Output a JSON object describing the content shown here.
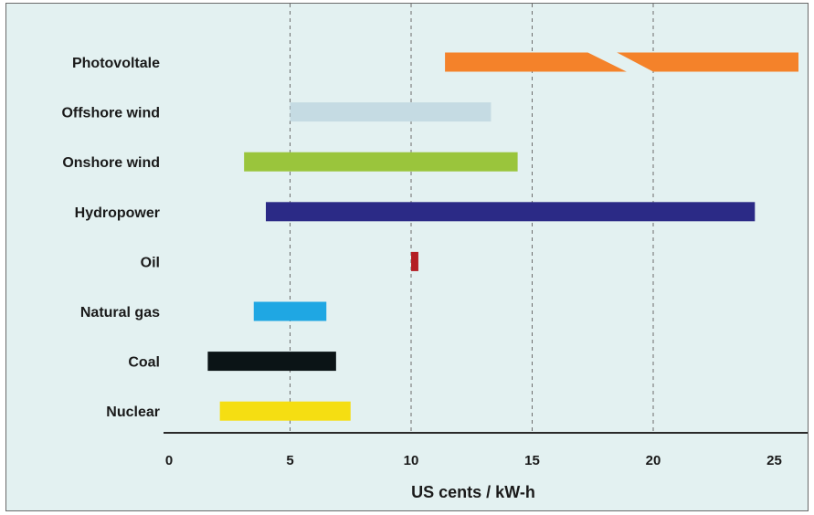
{
  "chart_data": {
    "type": "bar",
    "orientation": "horizontal-range",
    "title": "",
    "xlabel": "US cents / kW-h",
    "ylabel": "",
    "xlim": [
      0,
      26
    ],
    "xticks": [
      0,
      5,
      10,
      15,
      20,
      25
    ],
    "grid": "vertical dashed at 5, 10, 15, 20",
    "categories": [
      "Photovoltale",
      "Offshore wind",
      "Onshore wind",
      "Hydropower",
      "Oil",
      "Natural gas",
      "Coal",
      "Nuclear"
    ],
    "ranges": [
      {
        "category": "Photovoltale",
        "low": 11.4,
        "high": 26.0,
        "broken": true,
        "color": "#f4822a"
      },
      {
        "category": "Offshore wind",
        "low": 5.0,
        "high": 13.3,
        "color": "#c5dbe3"
      },
      {
        "category": "Onshore wind",
        "low": 3.1,
        "high": 14.4,
        "color": "#9ac53c"
      },
      {
        "category": "Hydropower",
        "low": 4.0,
        "high": 24.2,
        "color": "#2b2a86"
      },
      {
        "category": "Oil",
        "low": 10.0,
        "high": 10.3,
        "color": "#b41e24"
      },
      {
        "category": "Natural gas",
        "low": 3.5,
        "high": 6.5,
        "color": "#1fa7e3"
      },
      {
        "category": "Coal",
        "low": 1.6,
        "high": 6.9,
        "color": "#0b1416"
      },
      {
        "category": "Nuclear",
        "low": 2.1,
        "high": 7.5,
        "color": "#f5de12"
      }
    ]
  }
}
